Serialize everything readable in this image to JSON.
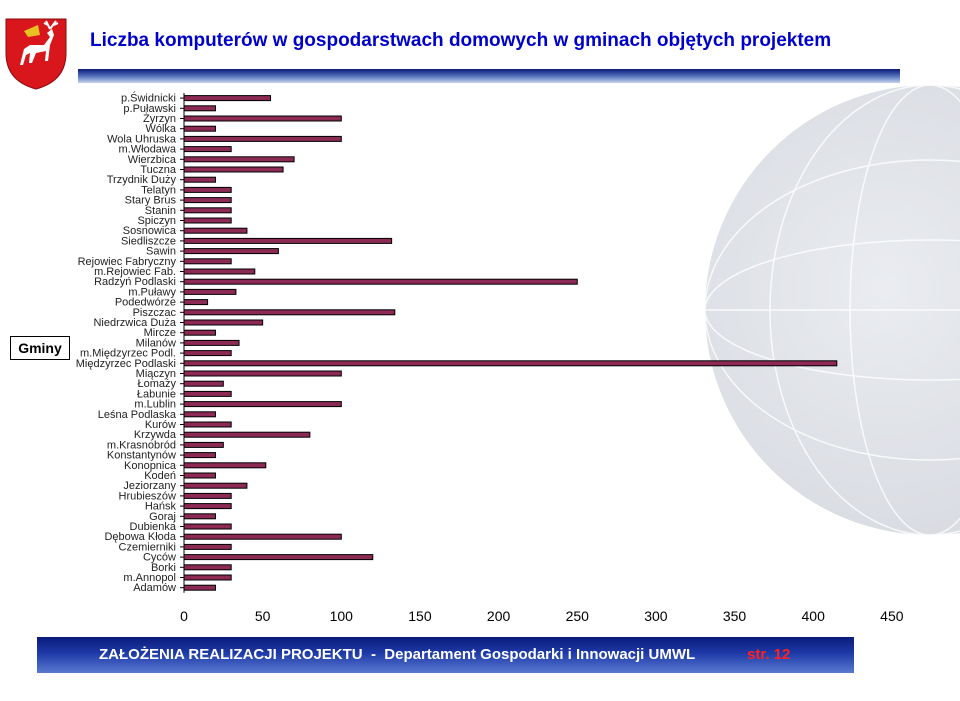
{
  "header": {
    "title": "Liczba komputerów w gospodarstwach domowych w gminach objętych projektem"
  },
  "footer": {
    "text": "ZAŁOŻENIA REALIZACJI PROJEKTU  -  Departament Gospodarki i Innowacji UMWL",
    "page": "str. 12"
  },
  "colors": {
    "bar_fill": "#8c2a55",
    "bar_stroke": "#000000",
    "title": "#0000cc",
    "footer_bg": "#1a2f98",
    "footer_page": "#ff2020",
    "logo_red": "#d8161c"
  },
  "icons": {
    "logo": "lubelskie-coat-of-arms-icon",
    "background": "globe-icon"
  },
  "chart_data": {
    "type": "bar",
    "orientation": "horizontal",
    "title": "Liczba komputerów w gospodarstwach domowych w gminach objętych projektem",
    "ylabel": "Gminy",
    "xlabel": "",
    "xlim": [
      0,
      450
    ],
    "xticks": [
      "0",
      "50",
      "100",
      "150",
      "200",
      "250",
      "300",
      "350",
      "400",
      "450"
    ],
    "grid": false,
    "legend": "none",
    "categories": [
      "p.Świdnicki",
      "p.Puławski",
      "Żyrzyn",
      "Wólka",
      "Wola Uhruska",
      "m.Włodawa",
      "Wierzbica",
      "Tuczna",
      "Trzydnik Duży",
      "Telatyn",
      "Stary Brus",
      "Stanin",
      "Spiczyn",
      "Sosnowica",
      "Siedliszcze",
      "Sawin",
      "Rejowiec Fabryczny",
      "m.Rejowiec Fab.",
      "Radzyń Podlaski",
      "m.Puławy",
      "Podedwórze",
      "Piszczac",
      "Niedrzwica Duża",
      "Mircze",
      "Milanów",
      "m.Międzyrzec Podl.",
      "Międzyrzec Podlaski",
      "Miączyn",
      "Łomaży",
      "Łabunie",
      "m.Lublin",
      "Leśna Podlaska",
      "Kurów",
      "Krzywda",
      "m.Krasnobród",
      "Konstantynów",
      "Konopnica",
      "Kodeń",
      "Jeziorzany",
      "Hrubieszów",
      "Hańsk",
      "Goraj",
      "Dubienka",
      "Dębowa Kłoda",
      "Czemierniki",
      "Cyców",
      "Borki",
      "m.Annopol",
      "Adamów"
    ],
    "values": [
      55,
      20,
      100,
      20,
      100,
      30,
      70,
      63,
      20,
      30,
      30,
      30,
      30,
      40,
      132,
      60,
      30,
      45,
      250,
      33,
      15,
      134,
      50,
      20,
      35,
      30,
      415,
      100,
      25,
      30,
      100,
      20,
      30,
      80,
      25,
      20,
      52,
      20,
      40,
      30,
      30,
      20,
      30,
      100,
      30,
      120,
      30,
      30,
      20
    ]
  }
}
